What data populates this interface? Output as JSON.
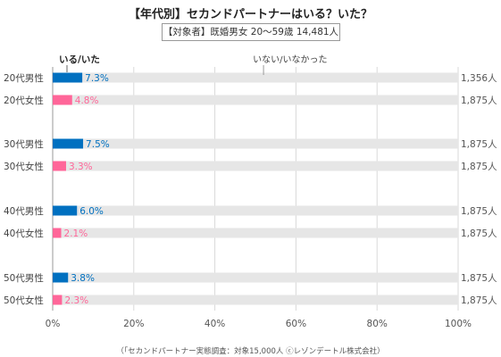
{
  "title": "【年代別】セカンドパートナーはいる？いた？",
  "subtitle": "【対象者】既婚男女 20～59歳 14,481人",
  "footer": "（「セカンドパートナー実態調査：対象15,000人 ⓒレゾンデートル株式会社）",
  "chart_data": {
    "type": "bar",
    "orientation": "horizontal",
    "stacked_to_100": true,
    "categories": [
      "20代男性",
      "20代女性",
      "30代男性",
      "30代女性",
      "40代男性",
      "40代女性",
      "50代男性",
      "50代女性"
    ],
    "series": [
      {
        "name": "いる/いた",
        "values": [
          7.3,
          4.8,
          7.5,
          3.3,
          6.0,
          2.1,
          3.8,
          2.3
        ],
        "value_labels": [
          "7.3%",
          "4.8%",
          "7.5%",
          "3.3%",
          "6.0%",
          "2.1%",
          "3.8%",
          "2.3%"
        ],
        "colors": [
          "#0070c0",
          "#ff6699",
          "#0070c0",
          "#ff6699",
          "#0070c0",
          "#ff6699",
          "#0070c0",
          "#ff6699"
        ]
      },
      {
        "name": "いない/いなかった",
        "values": [
          92.7,
          95.2,
          92.5,
          96.7,
          94.0,
          97.9,
          96.2,
          97.7
        ],
        "color": "#e6e6e6"
      }
    ],
    "sample_sizes": [
      "1,356人",
      "1,875人",
      "1,875人",
      "1,875人",
      "1,875人",
      "1,875人",
      "1,875人",
      "1,875人"
    ],
    "xlim": [
      0,
      100
    ],
    "x_ticks": [
      "0%",
      "20%",
      "40%",
      "60%",
      "80%",
      "100%"
    ],
    "grid": true,
    "legend": "series names labeled at top of bars"
  }
}
